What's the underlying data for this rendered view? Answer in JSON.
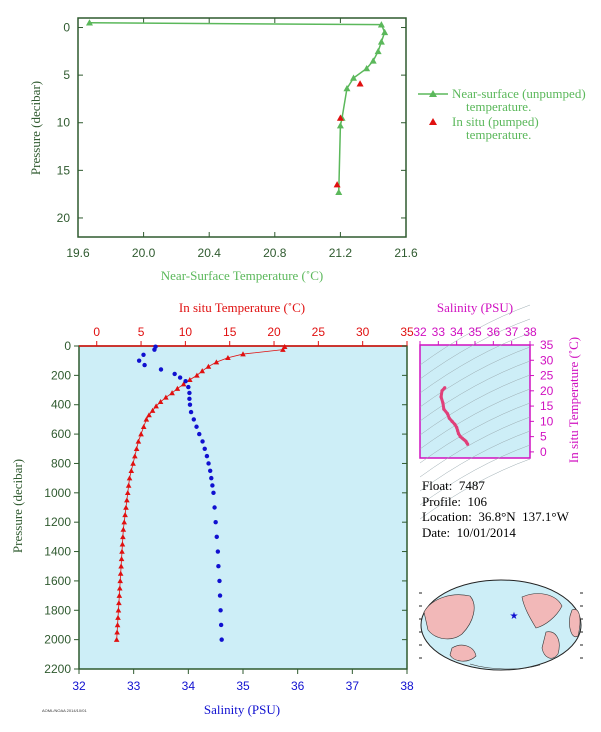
{
  "colors": {
    "green": "#5bb85b",
    "red": "#e01010",
    "blue": "#1010d0",
    "magenta": "#d010c0",
    "pink": "#e0407a",
    "axis": "#2f5a2f",
    "panel": "#cdeef7"
  },
  "info": {
    "float": "Float:  7487",
    "profile": "Profile:  106",
    "location": "Location:  36.8°N  137.1°W",
    "date": "Date:  10/01/2014"
  },
  "stamp": "AOML/NOAA 2014/10/01",
  "chart_data": [
    {
      "type": "line",
      "xlabel": "Near-Surface Temperature (˚C)",
      "ylabel": "Pressure (decibar)",
      "xlim": [
        19.6,
        21.6
      ],
      "ylim": [
        22,
        -1
      ],
      "xticks": [
        "19.6",
        "20.0",
        "20.4",
        "20.8",
        "21.2",
        "21.6"
      ],
      "yticks": [
        "0",
        "5",
        "10",
        "15",
        "20"
      ],
      "legend_position": "right",
      "series": [
        {
          "name": "Near-surface (unpumped) temperature.",
          "marker": "triangle",
          "color": "#5bb85b",
          "points": [
            [
              19.67,
              -0.5
            ],
            [
              21.45,
              -0.3
            ],
            [
              21.47,
              0.5
            ],
            [
              21.45,
              1.5
            ],
            [
              21.43,
              2.5
            ],
            [
              21.4,
              3.5
            ],
            [
              21.36,
              4.3
            ],
            [
              21.28,
              5.3
            ],
            [
              21.24,
              6.4
            ],
            [
              21.21,
              9.5
            ],
            [
              21.2,
              10.3
            ],
            [
              21.19,
              17.3
            ]
          ]
        },
        {
          "name": "In situ (pumped) temperature.",
          "marker": "triangle",
          "color": "#e01010",
          "points": [
            [
              21.32,
              5.9
            ],
            [
              21.2,
              9.5
            ],
            [
              21.18,
              16.5
            ]
          ]
        }
      ]
    },
    {
      "type": "scatter",
      "ylabel": "Pressure (decibar)",
      "top_xlabel": "In situ Temperature (˚C)",
      "bottom_xlabel": "Salinity (PSU)",
      "temp_lim": [
        -2,
        35
      ],
      "sal_lim": [
        32,
        38
      ],
      "ylim": [
        2200,
        0
      ],
      "temp_ticks": [
        "0",
        "5",
        "10",
        "15",
        "20",
        "25",
        "30",
        "35"
      ],
      "sal_ticks": [
        "32",
        "33",
        "34",
        "35",
        "36",
        "37",
        "38"
      ],
      "pres_ticks": [
        "0",
        "200",
        "400",
        "600",
        "800",
        "1000",
        "1200",
        "1400",
        "1600",
        "1800",
        "2000",
        "2200"
      ],
      "series": [
        {
          "name": "Temperature",
          "color": "#e01010",
          "points": [
            [
              21.2,
              5
            ],
            [
              21.0,
              25
            ],
            [
              16.5,
              55
            ],
            [
              14.8,
              80
            ],
            [
              13.5,
              110
            ],
            [
              12.6,
              140
            ],
            [
              11.9,
              170
            ],
            [
              11.3,
              200
            ],
            [
              10.5,
              230
            ],
            [
              9.8,
              260
            ],
            [
              9.1,
              290
            ],
            [
              8.5,
              320
            ],
            [
              7.8,
              350
            ],
            [
              7.2,
              380
            ],
            [
              6.7,
              410
            ],
            [
              6.3,
              440
            ],
            [
              5.9,
              470
            ],
            [
              5.6,
              500
            ],
            [
              5.3,
              550
            ],
            [
              5.0,
              600
            ],
            [
              4.7,
              650
            ],
            [
              4.5,
              700
            ],
            [
              4.3,
              750
            ],
            [
              4.1,
              800
            ],
            [
              3.9,
              850
            ],
            [
              3.7,
              900
            ],
            [
              3.6,
              950
            ],
            [
              3.5,
              1000
            ],
            [
              3.4,
              1050
            ],
            [
              3.3,
              1100
            ],
            [
              3.2,
              1150
            ],
            [
              3.1,
              1200
            ],
            [
              3.0,
              1250
            ],
            [
              2.95,
              1300
            ],
            [
              2.9,
              1350
            ],
            [
              2.85,
              1400
            ],
            [
              2.8,
              1450
            ],
            [
              2.75,
              1500
            ],
            [
              2.7,
              1550
            ],
            [
              2.65,
              1600
            ],
            [
              2.6,
              1650
            ],
            [
              2.55,
              1700
            ],
            [
              2.5,
              1750
            ],
            [
              2.45,
              1800
            ],
            [
              2.4,
              1850
            ],
            [
              2.35,
              1900
            ],
            [
              2.3,
              1950
            ],
            [
              2.25,
              2000
            ]
          ]
        },
        {
          "name": "Salinity",
          "color": "#1010d0",
          "points": [
            [
              33.4,
              5
            ],
            [
              33.38,
              25
            ],
            [
              33.18,
              60
            ],
            [
              33.1,
              100
            ],
            [
              33.2,
              130
            ],
            [
              33.5,
              160
            ],
            [
              33.75,
              190
            ],
            [
              33.85,
              215
            ],
            [
              33.95,
              240
            ],
            [
              34.0,
              280
            ],
            [
              34.02,
              320
            ],
            [
              34.02,
              360
            ],
            [
              34.03,
              400
            ],
            [
              34.05,
              450
            ],
            [
              34.1,
              500
            ],
            [
              34.15,
              550
            ],
            [
              34.2,
              600
            ],
            [
              34.26,
              650
            ],
            [
              34.3,
              700
            ],
            [
              34.34,
              750
            ],
            [
              34.37,
              800
            ],
            [
              34.4,
              850
            ],
            [
              34.42,
              900
            ],
            [
              34.44,
              950
            ],
            [
              34.46,
              1000
            ],
            [
              34.48,
              1100
            ],
            [
              34.5,
              1200
            ],
            [
              34.52,
              1300
            ],
            [
              34.54,
              1400
            ],
            [
              34.55,
              1500
            ],
            [
              34.57,
              1600
            ],
            [
              34.58,
              1700
            ],
            [
              34.59,
              1800
            ],
            [
              34.6,
              1900
            ],
            [
              34.61,
              2000
            ]
          ]
        }
      ]
    },
    {
      "type": "scatter",
      "title": "Salinity (PSU)",
      "ylabel": "In situ Temperature (˚C)",
      "xlim": [
        32,
        38
      ],
      "ylim": [
        -2,
        35
      ],
      "xticks": [
        "32",
        "33",
        "34",
        "35",
        "36",
        "37",
        "38"
      ],
      "yticks": [
        "0",
        "5",
        "10",
        "15",
        "20",
        "25",
        "30",
        "35"
      ],
      "points": [
        [
          33.35,
          21
        ],
        [
          33.2,
          20
        ],
        [
          33.15,
          18
        ],
        [
          33.25,
          16
        ],
        [
          33.3,
          14
        ],
        [
          33.5,
          12.5
        ],
        [
          33.6,
          11
        ],
        [
          33.75,
          10
        ],
        [
          33.9,
          9
        ],
        [
          34.0,
          8
        ],
        [
          34.05,
          7
        ],
        [
          34.1,
          6
        ],
        [
          34.2,
          5
        ],
        [
          34.3,
          4.5
        ],
        [
          34.4,
          4
        ],
        [
          34.5,
          3.5
        ],
        [
          34.55,
          3
        ],
        [
          34.6,
          2.5
        ]
      ]
    }
  ]
}
